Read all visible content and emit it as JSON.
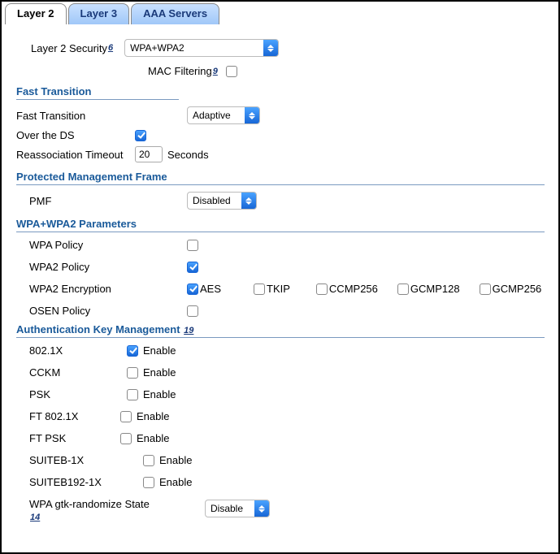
{
  "tabs": [
    "Layer 2",
    "Layer 3",
    "AAA Servers"
  ],
  "active_tab_index": 0,
  "layer2Security": {
    "label": "Layer 2 Security",
    "footnote": "6",
    "selected": "WPA+WPA2"
  },
  "macFiltering": {
    "label": "MAC Filtering",
    "footnote": "9",
    "checked": false
  },
  "fastTransition": {
    "title": "Fast Transition",
    "mode": {
      "label": "Fast Transition",
      "selected": "Adaptive"
    },
    "overDS": {
      "label": "Over the DS",
      "checked": true
    },
    "reassocTimeout": {
      "label": "Reassociation Timeout",
      "value": "20",
      "unit": "Seconds"
    }
  },
  "pmf": {
    "title": "Protected Management Frame",
    "label": "PMF",
    "selected": "Disabled"
  },
  "wpaParams": {
    "title": "WPA+WPA2 Parameters",
    "wpaPolicy": {
      "label": "WPA Policy",
      "checked": false
    },
    "wpa2Policy": {
      "label": "WPA2 Policy",
      "checked": true
    },
    "wpa2Encryption": {
      "label": "WPA2 Encryption",
      "options": [
        {
          "label": "AES",
          "checked": true
        },
        {
          "label": "TKIP",
          "checked": false
        },
        {
          "label": "CCMP256",
          "checked": false
        },
        {
          "label": "GCMP128",
          "checked": false
        },
        {
          "label": "GCMP256",
          "checked": false
        }
      ]
    },
    "osenPolicy": {
      "label": "OSEN Policy",
      "checked": false
    }
  },
  "akm": {
    "title": "Authentication Key Management",
    "footnote": "19",
    "items": [
      {
        "label": "802.1X",
        "enable": "Enable",
        "checked": true,
        "labelWidth": 120,
        "cbLeft": 0
      },
      {
        "label": "CCKM",
        "enable": "Enable",
        "checked": false,
        "labelWidth": 120,
        "cbLeft": 0
      },
      {
        "label": "PSK",
        "enable": "Enable",
        "checked": false,
        "labelWidth": 120,
        "cbLeft": 0
      },
      {
        "label": "FT 802.1X",
        "enable": "Enable",
        "checked": false,
        "labelWidth": 112,
        "cbLeft": 0
      },
      {
        "label": "FT PSK",
        "enable": "Enable",
        "checked": false,
        "labelWidth": 112,
        "cbLeft": 0
      },
      {
        "label": "SUITEB-1X",
        "enable": "Enable",
        "checked": false,
        "labelWidth": 140,
        "cbLeft": 0
      },
      {
        "label": "SUITEB192-1X",
        "enable": "Enable",
        "checked": false,
        "labelWidth": 140,
        "cbLeft": 0
      }
    ],
    "gtk": {
      "label": "WPA gtk-randomize State",
      "footnote": "14",
      "selected": "Disable"
    }
  },
  "colors": {
    "tab_inactive_top": "#c9e1ff",
    "tab_inactive_bottom": "#a0c8f8",
    "tab_text": "#1a3a7a",
    "section_title": "#1a5a9a",
    "hr": "#7a9ac0",
    "accent_top": "#4aa3ff",
    "accent_bottom": "#1766d6"
  }
}
